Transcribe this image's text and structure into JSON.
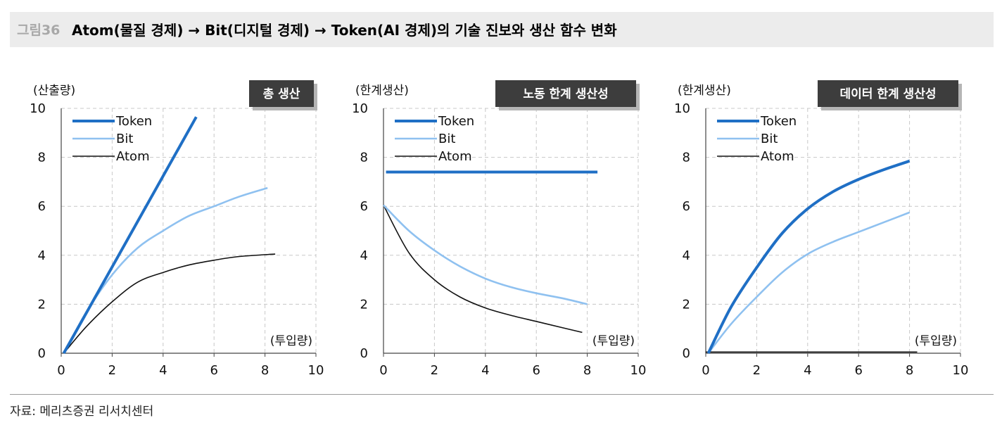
{
  "header": {
    "figure_number": "그림36",
    "title": "Atom(물질 경제) → Bit(디지털 경제) → Token(AI 경제)의 기술 진보와 생산 함수 변화"
  },
  "footer": {
    "source": "자료: 메리츠증권 리서치센터"
  },
  "colors": {
    "token": "#1f6fc5",
    "bit": "#8fc1f0",
    "atom": "#111111",
    "badge": "#3d3d3d",
    "grid": "#c8c8c8"
  },
  "chart_data": [
    {
      "type": "line",
      "badge": "총 생산",
      "ylabel": "(산출량)",
      "xlabel": "(투입량)",
      "xlim": [
        0,
        10
      ],
      "ylim": [
        0,
        10
      ],
      "xticks": [
        "0",
        "2",
        "4",
        "6",
        "8",
        "10"
      ],
      "yticks": [
        "0",
        "2",
        "4",
        "6",
        "8",
        "10"
      ],
      "grid": true,
      "legend_position": "top-left",
      "series": [
        {
          "name": "Token",
          "x": [
            0.1,
            5.3
          ],
          "y": [
            0,
            9.65
          ]
        },
        {
          "name": "Bit",
          "x": [
            0.1,
            1,
            2,
            3,
            4,
            5,
            6,
            7,
            8.1
          ],
          "y": [
            0,
            1.7,
            3.2,
            4.3,
            5.0,
            5.6,
            6.0,
            6.4,
            6.75
          ]
        },
        {
          "name": "Atom",
          "x": [
            0.1,
            1,
            2,
            3,
            4,
            5,
            6,
            7,
            8.4
          ],
          "y": [
            0,
            1.1,
            2.1,
            2.9,
            3.3,
            3.6,
            3.8,
            3.95,
            4.05
          ]
        }
      ]
    },
    {
      "type": "line",
      "badge": "노동 한계 생산성",
      "ylabel": "(한계생산)",
      "xlabel": "(투입량)",
      "xlim": [
        0,
        10
      ],
      "ylim": [
        0,
        10
      ],
      "xticks": [
        "0",
        "2",
        "4",
        "6",
        "8",
        "10"
      ],
      "yticks": [
        "0",
        "2",
        "4",
        "6",
        "8",
        "10"
      ],
      "grid": true,
      "legend_position": "top-left",
      "series": [
        {
          "name": "Token",
          "x": [
            0.1,
            8.4
          ],
          "y": [
            7.4,
            7.4
          ]
        },
        {
          "name": "Bit",
          "x": [
            0,
            1,
            2,
            3,
            4,
            5,
            6,
            7,
            8
          ],
          "y": [
            6.05,
            5.0,
            4.2,
            3.55,
            3.05,
            2.7,
            2.45,
            2.25,
            2.0
          ]
        },
        {
          "name": "Atom",
          "x": [
            0,
            1,
            2,
            3,
            4,
            5,
            6,
            7,
            7.8
          ],
          "y": [
            6.05,
            4.1,
            3.0,
            2.3,
            1.85,
            1.55,
            1.3,
            1.05,
            0.85
          ]
        }
      ]
    },
    {
      "type": "line",
      "badge": "데이터 한계 생산성",
      "ylabel": "(한계생산)",
      "xlabel": "(투입량)",
      "xlim": [
        0,
        10
      ],
      "ylim": [
        0,
        10
      ],
      "xticks": [
        "0",
        "2",
        "4",
        "6",
        "8",
        "10"
      ],
      "yticks": [
        "0",
        "2",
        "4",
        "6",
        "8",
        "10"
      ],
      "grid": true,
      "legend_position": "top-left",
      "series": [
        {
          "name": "Token",
          "x": [
            0.1,
            1,
            2,
            3,
            4,
            5,
            6,
            7,
            8
          ],
          "y": [
            0,
            1.9,
            3.5,
            4.9,
            5.9,
            6.6,
            7.1,
            7.5,
            7.85
          ]
        },
        {
          "name": "Bit",
          "x": [
            0.1,
            1,
            2,
            3,
            4,
            5,
            6,
            7,
            8
          ],
          "y": [
            0,
            1.2,
            2.3,
            3.3,
            4.05,
            4.55,
            4.95,
            5.35,
            5.75
          ]
        },
        {
          "name": "Atom",
          "x": [
            0,
            8.3
          ],
          "y": [
            0.05,
            0.05
          ]
        }
      ]
    }
  ]
}
